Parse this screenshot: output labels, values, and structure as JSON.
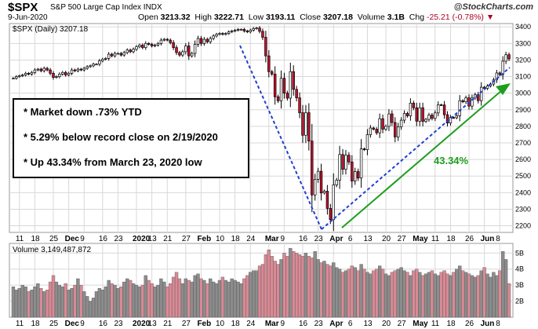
{
  "header": {
    "symbol": "$SPX",
    "description": "S&P 500 Large Cap Index INDX",
    "credit": "@StockCharts.com",
    "date": "9-Jun-2020",
    "open_label": "Open",
    "open": "3213.32",
    "high_label": "High",
    "high": "3222.71",
    "low_label": "Low",
    "low": "3193.11",
    "close_label": "Close",
    "close": "3207.18",
    "volume_label": "Volume",
    "volume": "3.1B",
    "chg_label": "Chg",
    "chg": "-25.21 (-0.78%)"
  },
  "price_legend": "$SPX (Daily) 3207.18",
  "volume_legend": "Volume 3,149,487,872",
  "notes": [
    "* Market down .73% YTD",
    "* 5.29% below record close on 2/19/2020",
    "* Up 43.34% from March 23, 2020 low"
  ],
  "gain_label": "43.34%",
  "colors": {
    "up": "#d9d9d9",
    "down": "#c8102e",
    "down_vol": "#d98a95",
    "up_vol": "#8c8c8c",
    "trend": "#1f3fd1",
    "arrow": "#1e9e1e",
    "grid": "#d8d8d8"
  },
  "chart_data": {
    "type": "candlestick",
    "price_axis": {
      "ticks": [
        2200,
        2300,
        2400,
        2500,
        2600,
        2700,
        2800,
        2900,
        3000,
        3100,
        3200,
        3300,
        3400
      ],
      "range": [
        2160,
        3420
      ]
    },
    "volume_axis": {
      "ticks": [
        "2B",
        "3B",
        "4B",
        "5B"
      ],
      "range": [
        1,
        5.6
      ],
      "unit": "billions"
    },
    "x_ticks": [
      "11",
      "18",
      "25",
      "Dec",
      "9",
      "16",
      "23",
      "2020",
      "13",
      "21",
      "27",
      "Feb",
      "10",
      "18",
      "24",
      "Mar",
      "9",
      "16",
      "23",
      "Apr",
      "6",
      "13",
      "20",
      "27",
      "May",
      "11",
      "18",
      "26",
      "Jun",
      "8"
    ],
    "close_series": [
      3090,
      3100,
      3105,
      3110,
      3120,
      3115,
      3125,
      3140,
      3145,
      3135,
      3150,
      3140,
      3120,
      3095,
      3100,
      3115,
      3125,
      3110,
      3120,
      3140,
      3135,
      3145,
      3140,
      3150,
      3160,
      3165,
      3175,
      3175,
      3195,
      3205,
      3210,
      3235,
      3225,
      3240,
      3240,
      3230,
      3245,
      3260,
      3250,
      3265,
      3280,
      3290,
      3275,
      3300,
      3295,
      3285,
      3290,
      3300,
      3320,
      3325,
      3320,
      3305,
      3275,
      3245,
      3230,
      3250,
      3285,
      3225,
      3240,
      3295,
      3330,
      3300,
      3325,
      3310,
      3330,
      3345,
      3355,
      3360,
      3355,
      3360,
      3370,
      3375,
      3380,
      3385,
      3385,
      3375,
      3370,
      3380,
      3390,
      3393,
      3373,
      3337,
      3225,
      3130,
      3115,
      2978,
      2954,
      3090,
      3000,
      2970,
      3130,
      3023,
      2972,
      2882,
      2746,
      2882,
      2711,
      2386,
      2480,
      2529,
      2398,
      2409,
      2305,
      2237,
      2447,
      2475,
      2630,
      2541,
      2626,
      2585,
      2470,
      2527,
      2488,
      2664,
      2659,
      2750,
      2790,
      2783,
      2761,
      2846,
      2783,
      2800,
      2875,
      2823,
      2736,
      2797,
      2837,
      2878,
      2863,
      2940,
      2912,
      2831,
      2912,
      2830,
      2842,
      2868,
      2848,
      2881,
      2930,
      2929,
      2870,
      2820,
      2853,
      2852,
      2864,
      2955,
      2948,
      2972,
      2922,
      2971,
      2991,
      2955,
      3036,
      3029,
      3044,
      3055,
      3080,
      3122,
      3112,
      3193,
      3232,
      3207
    ],
    "volume_series": [
      2.9,
      2.7,
      2.8,
      3.0,
      2.9,
      2.6,
      2.7,
      2.9,
      3.1,
      2.8,
      2.6,
      2.7,
      3.2,
      3.6,
      3.2,
      3.0,
      2.9,
      3.1,
      2.7,
      2.8,
      3.0,
      3.4,
      3.0,
      2.6,
      2.3,
      2.0,
      2.2,
      2.6,
      2.8,
      2.7,
      2.9,
      3.3,
      3.1,
      3.0,
      2.8,
      2.9,
      3.2,
      3.4,
      3.3,
      3.1,
      3.0,
      2.9,
      3.0,
      3.6,
      3.3,
      3.1,
      2.9,
      3.0,
      3.4,
      3.2,
      2.9,
      3.1,
      3.5,
      3.8,
      3.4,
      3.1,
      3.4,
      3.3,
      3.2,
      3.6,
      3.7,
      3.4,
      3.3,
      3.1,
      3.4,
      3.2,
      3.1,
      3.3,
      3.5,
      3.3,
      3.2,
      3.4,
      3.3,
      3.2,
      3.1,
      3.4,
      3.6,
      3.8,
      3.9,
      3.9,
      4.2,
      4.3,
      4.9,
      5.2,
      4.8,
      4.5,
      4.3,
      4.6,
      5.0,
      4.8,
      5.3,
      5.1,
      5.0,
      4.9,
      4.8,
      5.0,
      4.8,
      4.7,
      5.1,
      4.6,
      4.4,
      4.5,
      4.3,
      4.2,
      4.4,
      4.1,
      4.0,
      3.8,
      3.9,
      4.0,
      4.2,
      4.1,
      3.9,
      4.3,
      4.0,
      3.8,
      3.7,
      3.9,
      4.0,
      4.2,
      4.0,
      3.7,
      3.6,
      3.8,
      3.9,
      4.0,
      4.1,
      3.9,
      3.8,
      3.6,
      3.9,
      4.0,
      3.8,
      3.6,
      3.7,
      3.8,
      3.9,
      3.7,
      3.6,
      3.8,
      3.9,
      3.7,
      3.6,
      3.8,
      4.0,
      4.2,
      3.9,
      3.8,
      3.7,
      3.6,
      3.5,
      3.6,
      3.9,
      4.1,
      3.7,
      3.5,
      3.8,
      3.6,
      3.9,
      5.1,
      4.6,
      3.1
    ]
  }
}
